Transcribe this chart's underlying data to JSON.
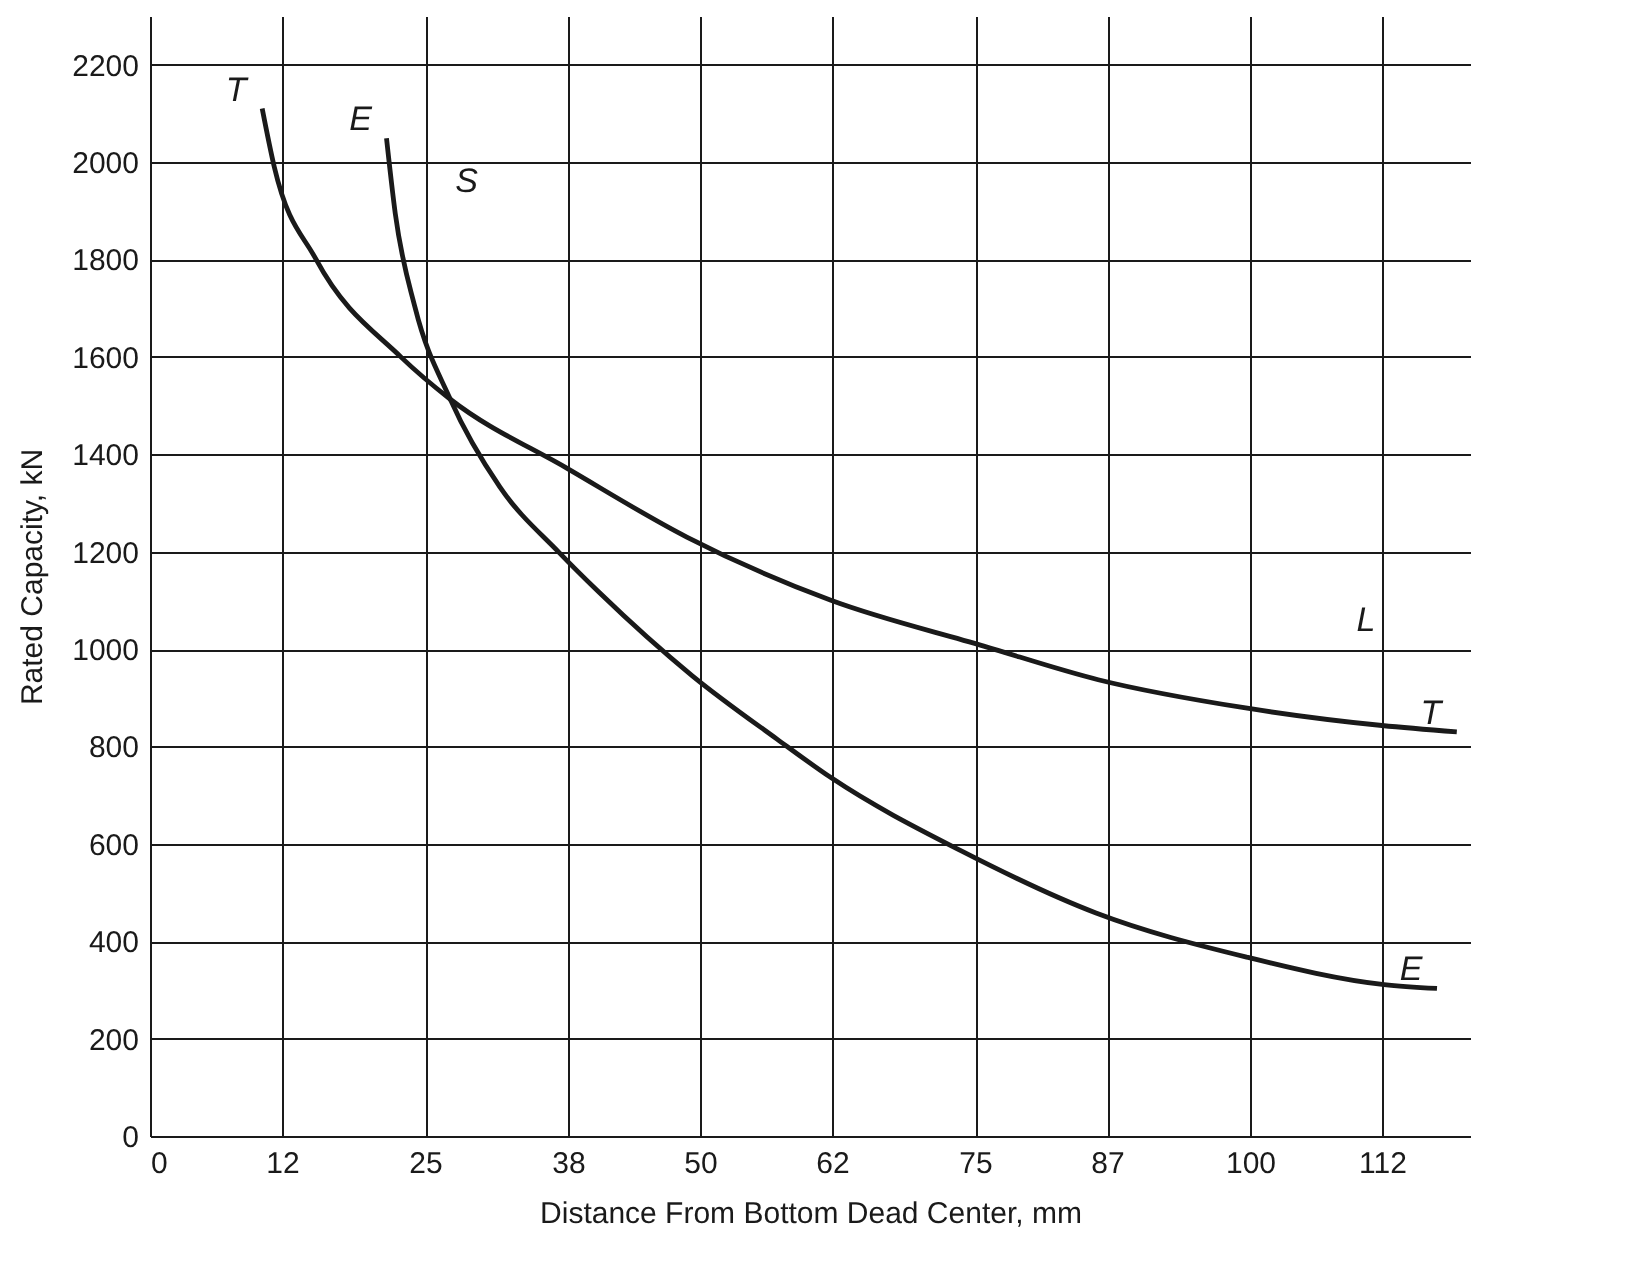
{
  "chart_data": {
    "type": "line",
    "xlabel": "Distance From Bottom Dead Center, mm",
    "ylabel": "Rated Capacity, kN",
    "xlim": [
      0,
      120
    ],
    "ylim": [
      0,
      2300
    ],
    "xticks": [
      0,
      12,
      25,
      38,
      50,
      62,
      75,
      87,
      100,
      112
    ],
    "yticks": [
      0,
      200,
      400,
      600,
      800,
      1000,
      1200,
      1400,
      1600,
      1800,
      2000,
      2200
    ],
    "grid": true,
    "legend": false,
    "marker": "none",
    "line_style": "solid",
    "series": [
      {
        "name": "T",
        "color": "#1a1a1a",
        "x": [
          10.2,
          11.3,
          15.1,
          22.8,
          27.3,
          38,
          48.8,
          61.9,
          75.8,
          86.2,
          99.6,
          112,
          118.8
        ],
        "values": [
          2110,
          1990,
          1800,
          1600,
          1513,
          1370,
          1230,
          1100,
          1006,
          937,
          879,
          843,
          830
        ]
      },
      {
        "name": "E",
        "color": "#1a1a1a",
        "x": [
          21.5,
          22.3,
          24.1,
          27.3,
          31.8,
          37.2,
          40.8,
          49.3,
          57,
          61.9,
          73.8,
          86,
          99.6,
          112.2,
          117
        ],
        "values": [
          2049,
          1894,
          1701,
          1513,
          1333,
          1198,
          1117,
          945,
          815,
          736,
          585,
          458,
          368,
          311,
          303
        ]
      }
    ],
    "annotations": [
      "S",
      "L"
    ]
  }
}
